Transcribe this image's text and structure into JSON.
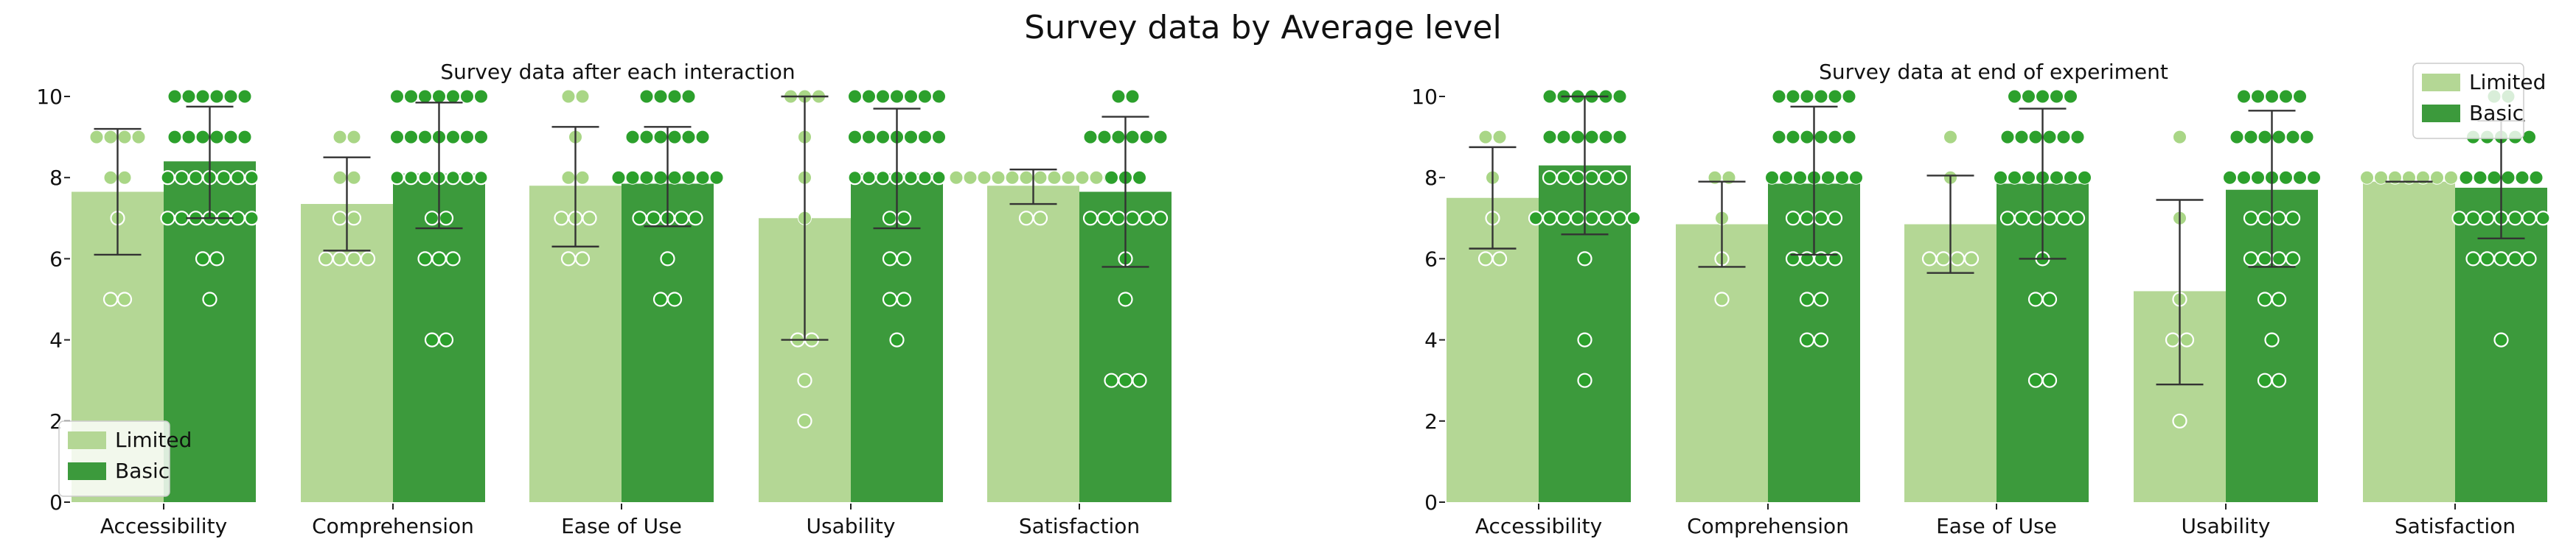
{
  "figure": {
    "suptitle": "Survey data by Average level"
  },
  "colors": {
    "Limited": "#b4d795",
    "Basic": "#3c9a3c",
    "Limited_dot": "#a9d686",
    "Basic_dot": "#2ca02c",
    "errbar": "#333333"
  },
  "chart_data": [
    {
      "type": "bar",
      "title": "Survey data after each interaction",
      "xlabel": "",
      "ylabel": "",
      "ylim": [
        0,
        10
      ],
      "yticks": [
        "0",
        "2",
        "4",
        "6",
        "8",
        "10"
      ],
      "categories": [
        "Accessibility",
        "Comprehension",
        "Ease of Use",
        "Usability",
        "Satisfaction"
      ],
      "legend": {
        "placement": "lower-left",
        "entries": [
          "Limited",
          "Basic"
        ]
      },
      "series": [
        {
          "name": "Limited",
          "values": [
            7.65,
            7.35,
            7.8,
            7.0,
            7.8
          ],
          "err_low": [
            6.1,
            6.2,
            6.3,
            4.0,
            7.35
          ],
          "err_high": [
            9.2,
            8.5,
            9.25,
            10.0,
            8.2
          ],
          "points": [
            [
              9,
              9,
              9,
              9,
              8,
              8,
              7,
              5,
              5
            ],
            [
              9,
              9,
              8,
              8,
              7,
              7,
              6,
              6,
              6,
              6
            ],
            [
              10,
              10,
              9,
              8,
              8,
              7,
              7,
              7,
              6,
              6
            ],
            [
              10,
              10,
              10,
              9,
              8,
              7,
              4,
              4,
              3,
              2
            ],
            [
              8,
              8,
              8,
              8,
              8,
              8,
              8,
              8,
              8,
              8,
              8,
              8,
              7,
              7
            ]
          ]
        },
        {
          "name": "Basic",
          "values": [
            8.4,
            8.1,
            7.85,
            8.1,
            7.65
          ],
          "err_low": [
            7.0,
            6.75,
            6.8,
            6.75,
            5.8
          ],
          "err_high": [
            9.75,
            9.85,
            9.25,
            9.7,
            9.5
          ],
          "points": [
            [
              10,
              10,
              10,
              10,
              10,
              10,
              9,
              9,
              9,
              9,
              9,
              9,
              8,
              8,
              8,
              8,
              8,
              8,
              8,
              7,
              7,
              7,
              7,
              7,
              7,
              7,
              6,
              6,
              5
            ],
            [
              10,
              10,
              10,
              10,
              10,
              10,
              10,
              9,
              9,
              9,
              9,
              9,
              9,
              9,
              8,
              8,
              8,
              8,
              8,
              8,
              8,
              7,
              7,
              6,
              6,
              6,
              4,
              4
            ],
            [
              10,
              10,
              10,
              10,
              9,
              9,
              9,
              9,
              9,
              9,
              8,
              8,
              8,
              8,
              8,
              8,
              8,
              8,
              7,
              7,
              7,
              7,
              7,
              6,
              5,
              5
            ],
            [
              10,
              10,
              10,
              10,
              10,
              10,
              10,
              9,
              9,
              9,
              9,
              9,
              9,
              9,
              8,
              8,
              8,
              8,
              8,
              8,
              8,
              7,
              7,
              6,
              6,
              5,
              5,
              4
            ],
            [
              10,
              10,
              9,
              9,
              9,
              9,
              9,
              9,
              8,
              8,
              8,
              7,
              7,
              7,
              7,
              7,
              7,
              6,
              5,
              3,
              3,
              3
            ]
          ]
        }
      ]
    },
    {
      "type": "bar",
      "title": "Survey data at end of experiment",
      "xlabel": "",
      "ylabel": "",
      "ylim": [
        0,
        10
      ],
      "yticks": [
        "0",
        "2",
        "4",
        "6",
        "8",
        "10"
      ],
      "categories": [
        "Accessibility",
        "Comprehension",
        "Ease of Use",
        "Usability",
        "Satisfaction"
      ],
      "legend": {
        "placement": "top-right",
        "entries": [
          "Limited",
          "Basic"
        ]
      },
      "series": [
        {
          "name": "Limited",
          "values": [
            7.5,
            6.85,
            6.85,
            5.2,
            7.9
          ],
          "err_low": [
            6.25,
            5.8,
            5.65,
            2.9,
            7.9
          ],
          "err_high": [
            8.75,
            7.9,
            8.05,
            7.45,
            7.9
          ],
          "points": [
            [
              9,
              9,
              8,
              7,
              6,
              6
            ],
            [
              8,
              8,
              7,
              6,
              5
            ],
            [
              9,
              8,
              6,
              6,
              6,
              6
            ],
            [
              9,
              7,
              5,
              4,
              4,
              2
            ],
            [
              8,
              8,
              8,
              8,
              8,
              8,
              8
            ]
          ]
        },
        {
          "name": "Basic",
          "values": [
            8.3,
            7.85,
            7.85,
            7.7,
            7.75
          ],
          "err_low": [
            6.6,
            6.1,
            6.0,
            5.8,
            6.5
          ],
          "err_high": [
            10.0,
            9.75,
            9.7,
            9.65,
            9.4
          ],
          "points": [
            [
              10,
              10,
              10,
              10,
              10,
              10,
              9,
              9,
              9,
              9,
              9,
              9,
              8,
              8,
              8,
              8,
              8,
              8,
              7,
              7,
              7,
              7,
              7,
              7,
              7,
              7,
              6,
              4,
              3
            ],
            [
              10,
              10,
              10,
              10,
              10,
              10,
              9,
              9,
              9,
              9,
              9,
              9,
              8,
              8,
              8,
              8,
              8,
              8,
              8,
              7,
              7,
              7,
              7,
              6,
              6,
              6,
              6,
              5,
              5,
              4,
              4
            ],
            [
              10,
              10,
              10,
              10,
              10,
              9,
              9,
              9,
              9,
              9,
              9,
              8,
              8,
              8,
              8,
              8,
              8,
              8,
              7,
              7,
              7,
              7,
              7,
              7,
              6,
              5,
              5,
              3,
              3
            ],
            [
              10,
              10,
              10,
              10,
              10,
              9,
              9,
              9,
              9,
              9,
              9,
              8,
              8,
              8,
              8,
              8,
              8,
              8,
              7,
              7,
              7,
              7,
              6,
              6,
              6,
              6,
              5,
              5,
              4,
              3,
              3
            ],
            [
              10,
              10,
              9,
              9,
              9,
              9,
              9,
              8,
              8,
              8,
              8,
              8,
              8,
              7,
              7,
              7,
              7,
              7,
              7,
              7,
              6,
              6,
              6,
              6,
              6,
              4
            ]
          ]
        }
      ]
    }
  ]
}
